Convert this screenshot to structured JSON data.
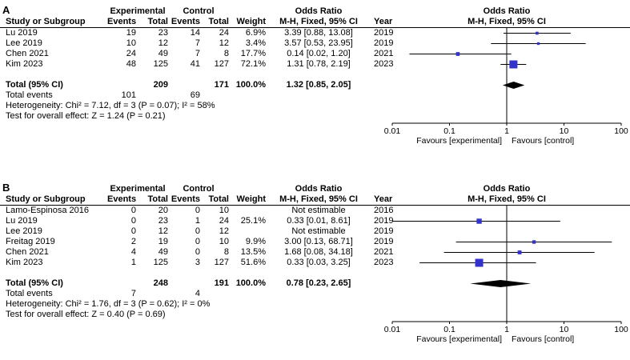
{
  "colors": {
    "square": "#3333CC",
    "diamond": "#000000",
    "axis": "#000000",
    "background": "#FFFFFF"
  },
  "chart_data": [
    {
      "type": "scatter",
      "subtype": "forest-plot",
      "panel_label": "A",
      "x_scale": "log",
      "x_ticks": [
        0.01,
        0.1,
        1,
        10,
        100
      ],
      "x_tick_labels": [
        "0.01",
        "0.1",
        "1",
        "10",
        "100"
      ],
      "favours_left": "Favours [experimental]",
      "favours_right": "Favours [control]",
      "headers": {
        "study": "Study or Subgroup",
        "experimental": "Experimental",
        "control": "Control",
        "events": "Events",
        "total": "Total",
        "weight": "Weight",
        "odds_ratio": "Odds Ratio",
        "method": "M-H, Fixed, 95% CI",
        "year": "Year",
        "plot_title": "Odds Ratio",
        "plot_subtitle": "M-H, Fixed, 95% CI"
      },
      "studies": [
        {
          "name": "Lu 2019",
          "exp_events": "19",
          "exp_total": "23",
          "ctrl_events": "14",
          "ctrl_total": "24",
          "weight": "6.9%",
          "weight_value": 6.9,
          "or_text": "3.39 [0.88, 13.08]",
          "or": 3.39,
          "ci_low": 0.88,
          "ci_high": 13.08,
          "year": "2019",
          "estimable": true
        },
        {
          "name": "Lee 2019",
          "exp_events": "10",
          "exp_total": "12",
          "ctrl_events": "7",
          "ctrl_total": "12",
          "weight": "3.4%",
          "weight_value": 3.4,
          "or_text": "3.57 [0.53, 23.95]",
          "or": 3.57,
          "ci_low": 0.53,
          "ci_high": 23.95,
          "year": "2019",
          "estimable": true
        },
        {
          "name": "Chen 2021",
          "exp_events": "24",
          "exp_total": "49",
          "ctrl_events": "7",
          "ctrl_total": "8",
          "weight": "17.7%",
          "weight_value": 17.7,
          "or_text": "0.14 [0.02, 1.20]",
          "or": 0.14,
          "ci_low": 0.02,
          "ci_high": 1.2,
          "year": "2021",
          "estimable": true
        },
        {
          "name": "Kim 2023",
          "exp_events": "48",
          "exp_total": "125",
          "ctrl_events": "41",
          "ctrl_total": "127",
          "weight": "72.1%",
          "weight_value": 72.1,
          "or_text": "1.31 [0.78, 2.19]",
          "or": 1.31,
          "ci_low": 0.78,
          "ci_high": 2.19,
          "year": "2023",
          "estimable": true
        }
      ],
      "total": {
        "label": "Total (95% CI)",
        "exp_total": "209",
        "ctrl_total": "171",
        "weight": "100.0%",
        "or_text": "1.32 [0.85, 2.05]",
        "or": 1.32,
        "ci_low": 0.85,
        "ci_high": 2.05
      },
      "total_events": {
        "label": "Total events",
        "exp": "101",
        "ctrl": "69"
      },
      "heterogeneity": "Heterogeneity: Chi² = 7.12, df = 3 (P = 0.07); I² = 58%",
      "overall_effect": "Test for overall effect: Z = 1.24 (P = 0.21)"
    },
    {
      "type": "scatter",
      "subtype": "forest-plot",
      "panel_label": "B",
      "x_scale": "log",
      "x_ticks": [
        0.01,
        0.1,
        1,
        10,
        100
      ],
      "x_tick_labels": [
        "0.01",
        "0.1",
        "1",
        "10",
        "100"
      ],
      "favours_left": "Favours [experimental]",
      "favours_right": "Favours [control]",
      "headers": {
        "study": "Study or Subgroup",
        "experimental": "Experimental",
        "control": "Control",
        "events": "Events",
        "total": "Total",
        "weight": "Weight",
        "odds_ratio": "Odds Ratio",
        "method": "M-H, Fixed, 95% CI",
        "year": "Year",
        "plot_title": "Odds Ratio",
        "plot_subtitle": "M-H, Fixed, 95% CI"
      },
      "studies": [
        {
          "name": "Lamo-Espinosa 2016",
          "exp_events": "0",
          "exp_total": "20",
          "ctrl_events": "0",
          "ctrl_total": "10",
          "weight": "",
          "weight_value": 0,
          "or_text": "Not estimable",
          "or": null,
          "ci_low": null,
          "ci_high": null,
          "year": "2016",
          "estimable": false
        },
        {
          "name": "Lu 2019",
          "exp_events": "0",
          "exp_total": "23",
          "ctrl_events": "1",
          "ctrl_total": "24",
          "weight": "25.1%",
          "weight_value": 25.1,
          "or_text": "0.33 [0.01, 8.61]",
          "or": 0.33,
          "ci_low": 0.01,
          "ci_high": 8.61,
          "year": "2019",
          "estimable": true
        },
        {
          "name": "Lee 2019",
          "exp_events": "0",
          "exp_total": "12",
          "ctrl_events": "0",
          "ctrl_total": "12",
          "weight": "",
          "weight_value": 0,
          "or_text": "Not estimable",
          "or": null,
          "ci_low": null,
          "ci_high": null,
          "year": "2019",
          "estimable": false
        },
        {
          "name": "Freitag 2019",
          "exp_events": "2",
          "exp_total": "19",
          "ctrl_events": "0",
          "ctrl_total": "10",
          "weight": "9.9%",
          "weight_value": 9.9,
          "or_text": "3.00 [0.13, 68.71]",
          "or": 3.0,
          "ci_low": 0.13,
          "ci_high": 68.71,
          "year": "2019",
          "estimable": true
        },
        {
          "name": "Chen 2021",
          "exp_events": "4",
          "exp_total": "49",
          "ctrl_events": "0",
          "ctrl_total": "8",
          "weight": "13.5%",
          "weight_value": 13.5,
          "or_text": "1.68 [0.08, 34.18]",
          "or": 1.68,
          "ci_low": 0.08,
          "ci_high": 34.18,
          "year": "2021",
          "estimable": true
        },
        {
          "name": "Kim 2023",
          "exp_events": "1",
          "exp_total": "125",
          "ctrl_events": "3",
          "ctrl_total": "127",
          "weight": "51.6%",
          "weight_value": 51.6,
          "or_text": "0.33 [0.03, 3.25]",
          "or": 0.33,
          "ci_low": 0.03,
          "ci_high": 3.25,
          "year": "2023",
          "estimable": true
        }
      ],
      "total": {
        "label": "Total (95% CI)",
        "exp_total": "248",
        "ctrl_total": "191",
        "weight": "100.0%",
        "or_text": "0.78 [0.23, 2.65]",
        "or": 0.78,
        "ci_low": 0.23,
        "ci_high": 2.65
      },
      "total_events": {
        "label": "Total events",
        "exp": "7",
        "ctrl": "4"
      },
      "heterogeneity": "Heterogeneity: Chi² = 1.76, df = 3 (P = 0.62); I² = 0%",
      "overall_effect": "Test for overall effect: Z = 0.40 (P = 0.69)"
    }
  ]
}
